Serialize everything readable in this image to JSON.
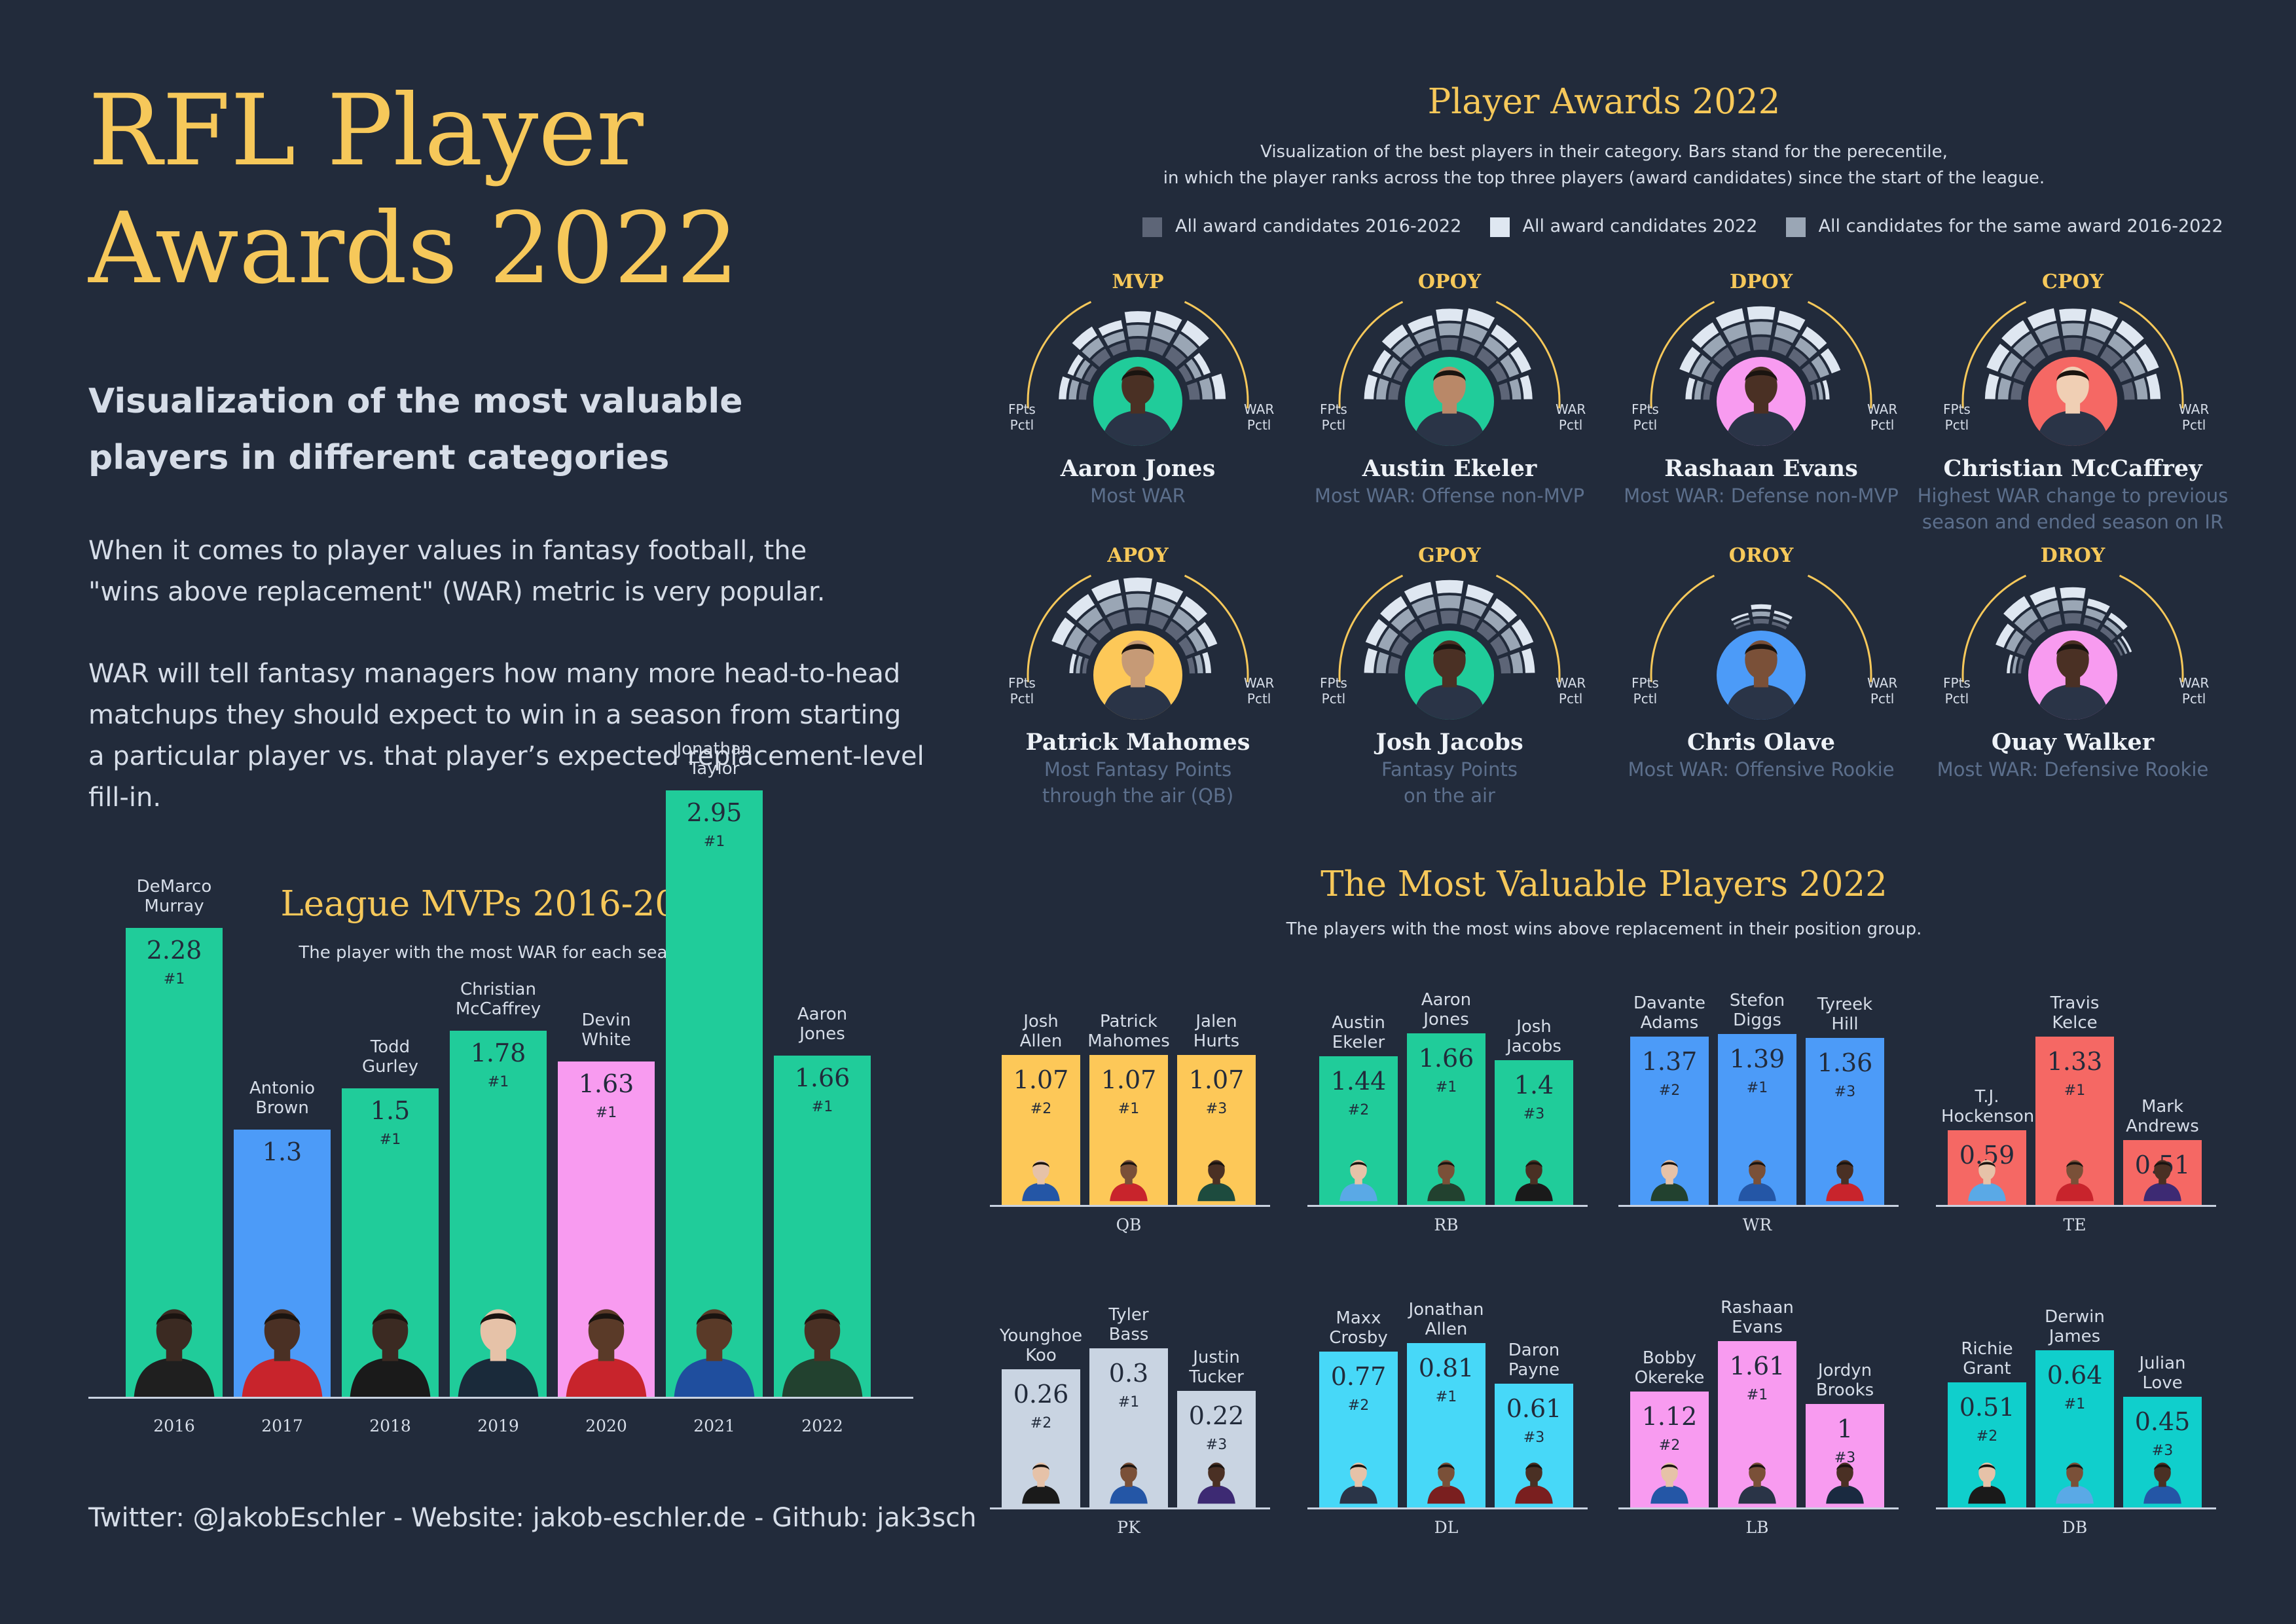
{
  "header": {
    "title_line1": "RFL Player",
    "title_line2": "Awards 2022",
    "subtitle_line1": "Visualization of the most valuable",
    "subtitle_line2": "players in different categories",
    "intro1_line1": "When it comes to player values in fantasy football, the",
    "intro1_line2": "\"wins above replacement\" (WAR) metric is very popular.",
    "intro2_line1": "WAR will tell fantasy managers how many more head-to-head",
    "intro2_line2": "matchups they should expect to win in a season from starting",
    "intro2_line3": "a particular player vs. that player’s expected replacement-level",
    "intro2_line4": "fill-in."
  },
  "footer": {
    "text": "Twitter: @JakobEschler - Website:  jakob-eschler.de - Github:  jak3sch"
  },
  "colors": {
    "background": "#222b3b",
    "gold": "#f6c85a",
    "qb": "#fdc858",
    "rb": "#20cc9a",
    "wr": "#4c9bf8",
    "te": "#f56864",
    "pk": "#c9d4e2",
    "dl": "#47d8f8",
    "lb": "#f89bf0",
    "db": "#10cfcc",
    "legend_dark": "#5d6577",
    "legend_light": "#dfe7f1",
    "legend_mid": "#9aa6b5"
  },
  "awards_section": {
    "title": "Player Awards 2022",
    "sub_line1": "Visualization of the best players in their category. Bars stand for the perecentile,",
    "sub_line2": "in which the player ranks across the top three players (award candidates) since the start of the league.",
    "legend": [
      "All award candidates 2016-2022",
      "All award candidates 2022",
      "All candidates for the same award 2016-2022"
    ],
    "left_label_line1": "FPts",
    "left_label_line2": "Pctl",
    "right_label_line1": "WAR",
    "right_label_line2": "Pctl",
    "awards": [
      {
        "award": "MVP",
        "player": "Aaron Jones",
        "desc_line1": "Most WAR",
        "desc_line2": "",
        "circle": "#20cc9a",
        "levels": [
          0.62,
          0.55,
          0.8,
          0.7,
          0.85,
          0.9,
          0.95,
          0.6,
          0.8
        ]
      },
      {
        "award": "OPOY",
        "player": "Austin Ekeler",
        "desc_line1": "Most WAR: Offense non-MVP",
        "desc_line2": "",
        "circle": "#20cc9a",
        "levels": [
          0.75,
          0.7,
          0.85,
          0.8,
          0.9,
          0.95,
          0.85,
          0.8,
          0.7
        ]
      },
      {
        "award": "DPOY",
        "player": "Rashaan Evans",
        "desc_line1": "Most WAR: Defense non-MVP",
        "desc_line2": "",
        "circle": "#f89bf0",
        "levels": [
          0.55,
          0.8,
          0.9,
          0.95,
          0.95,
          0.9,
          0.8,
          0.75,
          0.4
        ]
      },
      {
        "award": "CPOY",
        "player": "Christian McCaffrey",
        "desc_line1": "Highest WAR change to previous",
        "desc_line2": "season and ended season on IR",
        "circle": "#f56864",
        "levels": [
          0.8,
          0.9,
          0.95,
          0.95,
          0.9,
          0.95,
          0.95,
          0.9,
          0.8
        ]
      },
      {
        "award": "APOY",
        "player": "Patrick Mahomes",
        "desc_line1": "Most Fantasy Points",
        "desc_line2": "through the air (QB)",
        "circle": "#fdc858",
        "levels": [
          0.4,
          0.9,
          0.95,
          1.0,
          1.0,
          0.95,
          0.9,
          0.75,
          0.5
        ]
      },
      {
        "award": "GPOY",
        "player": "Josh Jacobs",
        "desc_line1": "Fantasy Points",
        "desc_line2": "on the air",
        "circle": "#20cc9a",
        "levels": [
          0.75,
          0.85,
          0.9,
          0.95,
          0.95,
          0.9,
          0.85,
          0.85,
          0.75
        ]
      },
      {
        "award": "OROY",
        "player": "Chris Olave",
        "desc_line1": "Most WAR: Offensive Rookie",
        "desc_line2": "",
        "circle": "#4c9bf8",
        "levels": [
          0.1,
          0.15,
          0.2,
          0.3,
          0.45,
          0.35,
          0.2,
          0.15,
          0.1
        ]
      },
      {
        "award": "DROY",
        "player": "Quay Walker",
        "desc_line1": "Most WAR: Defensive Rookie",
        "desc_line2": "",
        "circle": "#f89bf0",
        "levels": [
          0.35,
          0.7,
          0.9,
          0.85,
          0.8,
          0.6,
          0.5,
          0.3,
          0.2
        ]
      }
    ]
  },
  "mvp_section": {
    "title": "League MVPs 2016-2022",
    "subtitle": "The player with the most WAR for each season.",
    "rank_label": "#1"
  },
  "mvp2022_section": {
    "title": "The Most Valuable Players 2022",
    "subtitle": "The players with the most wins above replacement in their position group."
  },
  "chart_data": [
    {
      "type": "bar",
      "title": "League MVPs 2016-2022",
      "categories": [
        "2016",
        "2017",
        "2018",
        "2019",
        "2020",
        "2021",
        "2022"
      ],
      "players": [
        "DeMarco Murray",
        "Antonio Brown",
        "Todd Gurley",
        "Christian McCaffrey",
        "Devin White",
        "Jonathan Taylor",
        "Aaron Jones"
      ],
      "name_lines": [
        [
          "DeMarco",
          "Murray"
        ],
        [
          "Antonio",
          "Brown"
        ],
        [
          "Todd",
          "Gurley"
        ],
        [
          "Christian",
          "McCaffrey"
        ],
        [
          "Devin",
          "White"
        ],
        [
          "Jonathan",
          "Taylor"
        ],
        [
          "Aaron",
          "Jones"
        ]
      ],
      "values": [
        2.28,
        1.3,
        1.5,
        1.78,
        1.63,
        2.95,
        1.66
      ],
      "value_labels": [
        "2.28",
        "1.3",
        "1.5",
        "1.78",
        "1.63",
        "2.95",
        "1.66"
      ],
      "ranks": [
        "#1",
        "",
        "#1",
        "#1",
        "#1",
        "#1",
        "#1"
      ],
      "colors": [
        "#20cc9a",
        "#4c9bf8",
        "#20cc9a",
        "#20cc9a",
        "#f89bf0",
        "#20cc9a",
        "#20cc9a"
      ],
      "ylim": [
        0,
        3.2
      ]
    },
    {
      "type": "bar",
      "title": "The Most Valuable Players 2022",
      "ylim": [
        0,
        1.9
      ],
      "groups": [
        {
          "position": "QB",
          "color": "#fdc858",
          "ylim": [
            0,
            1.4
          ],
          "players": [
            {
              "name_lines": [
                "Josh",
                "Allen"
              ],
              "value": 1.07,
              "label": "1.07",
              "rank": "#2",
              "jersey": "#2456a6"
            },
            {
              "name_lines": [
                "Patrick",
                "Mahomes"
              ],
              "value": 1.07,
              "label": "1.07",
              "rank": "#1",
              "jersey": "#c8242c"
            },
            {
              "name_lines": [
                "Jalen",
                "Hurts"
              ],
              "value": 1.07,
              "label": "1.07",
              "rank": "#3",
              "jersey": "#1d4b3e"
            }
          ]
        },
        {
          "position": "RB",
          "color": "#20cc9a",
          "ylim": [
            0,
            1.9
          ],
          "players": [
            {
              "name_lines": [
                "Austin",
                "Ekeler"
              ],
              "value": 1.44,
              "label": "1.44",
              "rank": "#2",
              "jersey": "#5aa9e6"
            },
            {
              "name_lines": [
                "Aaron",
                "Jones"
              ],
              "value": 1.66,
              "label": "1.66",
              "rank": "#1",
              "jersey": "#22412f"
            },
            {
              "name_lines": [
                "Josh",
                "Jacobs"
              ],
              "value": 1.4,
              "label": "1.4",
              "rank": "#3",
              "jersey": "#1a1a1a"
            }
          ]
        },
        {
          "position": "WR",
          "color": "#4c9bf8",
          "ylim": [
            0,
            1.6
          ],
          "players": [
            {
              "name_lines": [
                "Davante",
                "Adams"
              ],
              "value": 1.37,
              "label": "1.37",
              "rank": "#2",
              "jersey": "#22412f"
            },
            {
              "name_lines": [
                "Stefon",
                "Diggs"
              ],
              "value": 1.39,
              "label": "1.39",
              "rank": "#1",
              "jersey": "#2456a6"
            },
            {
              "name_lines": [
                "Tyreek",
                "Hill"
              ],
              "value": 1.36,
              "label": "1.36",
              "rank": "#3",
              "jersey": "#c8242c"
            }
          ]
        },
        {
          "position": "TE",
          "color": "#f56864",
          "ylim": [
            0,
            1.55
          ],
          "players": [
            {
              "name_lines": [
                "T.J.",
                "Hockenson"
              ],
              "value": 0.59,
              "label": "0.59",
              "rank": "",
              "jersey": "#5aa9e6"
            },
            {
              "name_lines": [
                "Travis",
                "Kelce"
              ],
              "value": 1.33,
              "label": "1.33",
              "rank": "#1",
              "jersey": "#c8242c"
            },
            {
              "name_lines": [
                "Mark",
                "Andrews"
              ],
              "value": 0.51,
              "label": "0.51",
              "rank": "",
              "jersey": "#3d2a73"
            }
          ]
        },
        {
          "position": "PK",
          "color": "#c9d4e2",
          "ylim": [
            0,
            0.37
          ],
          "players": [
            {
              "name_lines": [
                "Younghoe",
                "Koo"
              ],
              "value": 0.26,
              "label": "0.26",
              "rank": "#2",
              "jersey": "#1a1a1a"
            },
            {
              "name_lines": [
                "Tyler",
                "Bass"
              ],
              "value": 0.3,
              "label": "0.3",
              "rank": "#1",
              "jersey": "#2456a6"
            },
            {
              "name_lines": [
                "Justin",
                "Tucker"
              ],
              "value": 0.22,
              "label": "0.22",
              "rank": "#3",
              "jersey": "#3d2a73"
            }
          ]
        },
        {
          "position": "DL",
          "color": "#47d8f8",
          "ylim": [
            0,
            0.97
          ],
          "players": [
            {
              "name_lines": [
                "Maxx",
                "Crosby"
              ],
              "value": 0.77,
              "label": "0.77",
              "rank": "#2",
              "jersey": "#2a3447"
            },
            {
              "name_lines": [
                "Jonathan",
                "Allen"
              ],
              "value": 0.81,
              "label": "0.81",
              "rank": "#1",
              "jersey": "#7a1f1f"
            },
            {
              "name_lines": [
                "Daron",
                "Payne"
              ],
              "value": 0.61,
              "label": "0.61",
              "rank": "#3",
              "jersey": "#7a1f1f"
            }
          ]
        },
        {
          "position": "LB",
          "color": "#f89bf0",
          "ylim": [
            0,
            1.9
          ],
          "players": [
            {
              "name_lines": [
                "Bobby",
                "Okereke"
              ],
              "value": 1.12,
              "label": "1.12",
              "rank": "#2",
              "jersey": "#2456a6"
            },
            {
              "name_lines": [
                "Rashaan",
                "Evans"
              ],
              "value": 1.61,
              "label": "1.61",
              "rank": "#1",
              "jersey": "#2a3447"
            },
            {
              "name_lines": [
                "Jordyn",
                "Brooks"
              ],
              "value": 1.0,
              "label": "1",
              "rank": "#3",
              "jersey": "#1a2a40"
            }
          ]
        },
        {
          "position": "DB",
          "color": "#10cfcc",
          "ylim": [
            0,
            0.8
          ],
          "players": [
            {
              "name_lines": [
                "Richie",
                "Grant"
              ],
              "value": 0.51,
              "label": "0.51",
              "rank": "#2",
              "jersey": "#1a1a1a"
            },
            {
              "name_lines": [
                "Derwin",
                "James"
              ],
              "value": 0.64,
              "label": "0.64",
              "rank": "#1",
              "jersey": "#5aa9e6"
            },
            {
              "name_lines": [
                "Julian",
                "Love"
              ],
              "value": 0.45,
              "label": "0.45",
              "rank": "#3",
              "jersey": "#2456a6"
            }
          ]
        }
      ]
    }
  ]
}
